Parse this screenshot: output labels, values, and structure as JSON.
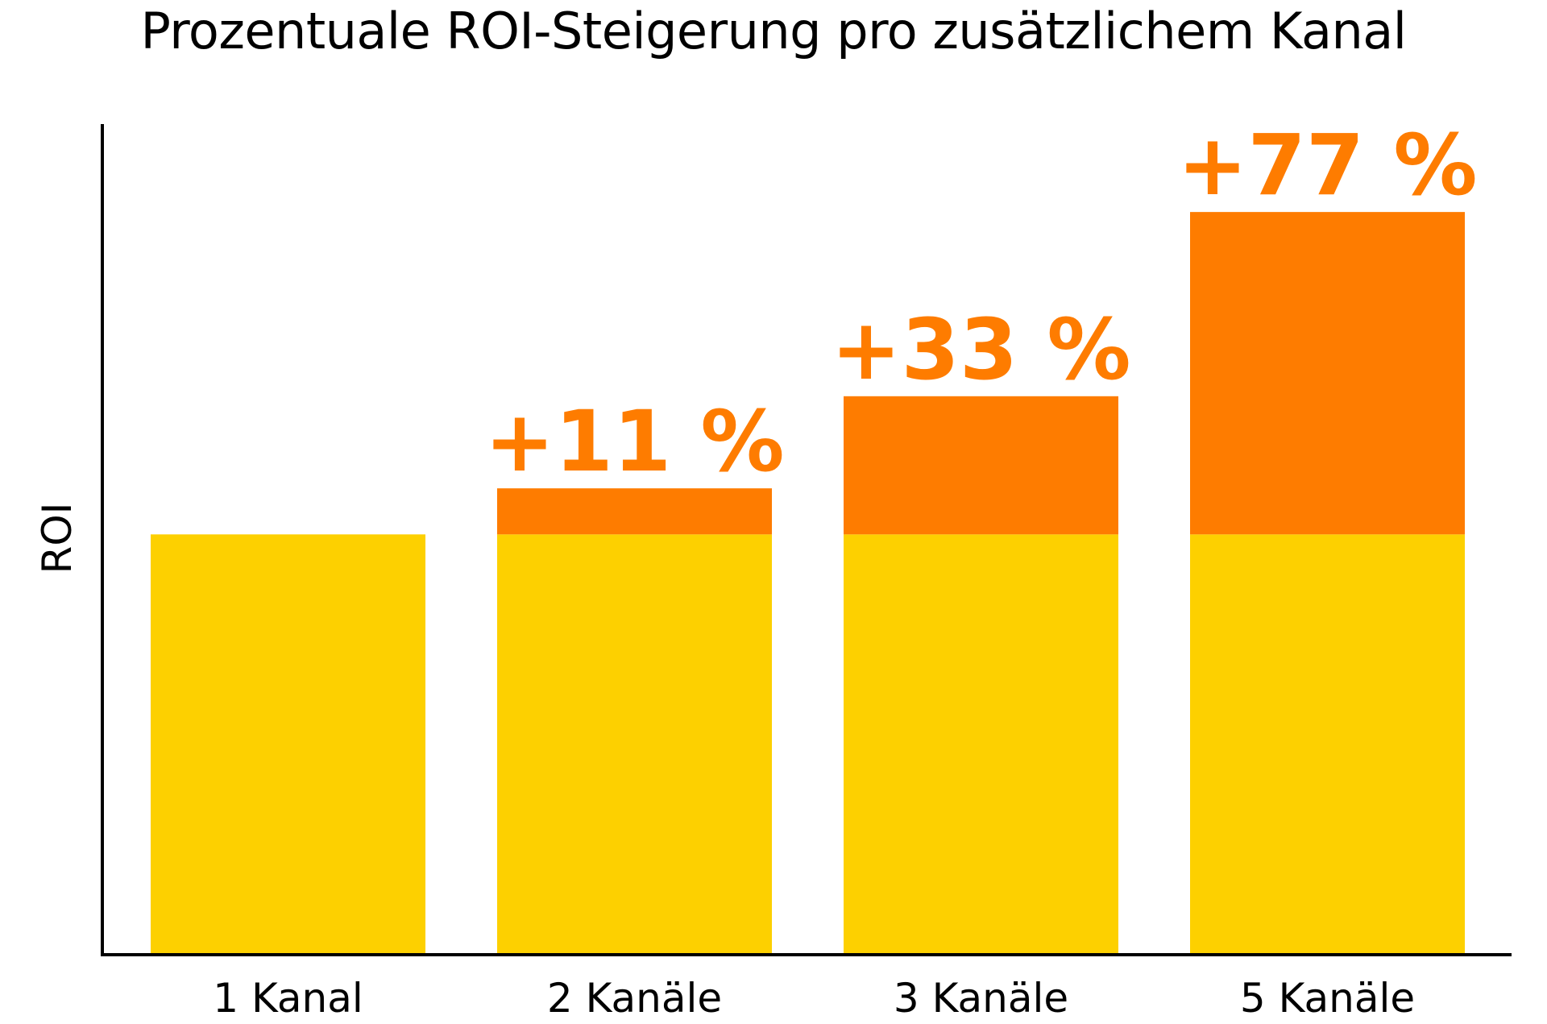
{
  "chart_data": {
    "type": "bar",
    "stacked": true,
    "title": "Prozentuale ROI-Steigerung pro zusätzlichem Kanal",
    "xlabel": "",
    "ylabel": "ROI",
    "categories": [
      "1 Kanal",
      "2 Kanäle",
      "3 Kanäle",
      "5 Kanäle"
    ],
    "baseline_value": 100,
    "increase_percent": [
      0,
      11,
      33,
      77
    ],
    "series": [
      {
        "values": [
          100,
          100,
          100,
          100
        ],
        "color": "#FDD000"
      },
      {
        "values": [
          0,
          11,
          33,
          77
        ],
        "color": "#FE7C00"
      }
    ],
    "data_labels": [
      "",
      "+11 %",
      "+33 %",
      "+77 %"
    ],
    "ylim": [
      0,
      198
    ],
    "y_ticks_shown": false,
    "grid": false,
    "legend": "none"
  }
}
